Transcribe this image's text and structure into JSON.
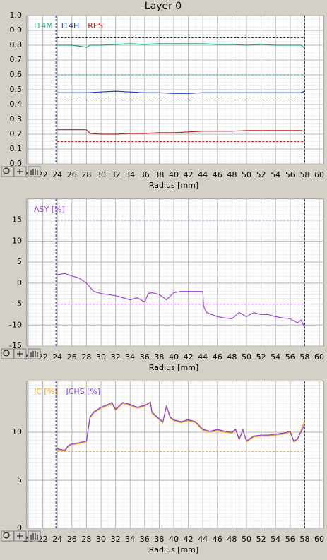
{
  "header": {
    "title": "Layer 0"
  },
  "chart_data": [
    {
      "type": "line",
      "x_label": "Radius [mm]",
      "xlim": [
        20,
        60
      ],
      "xticks": [
        20,
        22,
        24,
        26,
        28,
        30,
        32,
        34,
        36,
        38,
        40,
        42,
        44,
        46,
        48,
        50,
        52,
        54,
        56,
        58,
        60
      ],
      "ylim": [
        0,
        1
      ],
      "yticks": [
        {
          "value": 0,
          "label": "0.0"
        },
        0.1,
        0.2,
        0.3,
        0.4,
        0.5,
        0.6,
        0.7,
        0.8,
        0.9,
        {
          "value": 1,
          "label": "1.0"
        }
      ],
      "grid": true,
      "vlines": [
        {
          "value": 23.8,
          "color": "#2020c0"
        },
        {
          "value": 58,
          "color": "#2020c0"
        }
      ],
      "hlines": [
        {
          "value": 0.85,
          "color": "#2020c0"
        },
        {
          "value": 0.6,
          "color": "#20a080"
        },
        {
          "value": 0.45,
          "color": "#2020c0"
        },
        {
          "value": 0.15,
          "color": "#c02020"
        }
      ],
      "series": [
        {
          "name": "I14M",
          "color": "#20a080",
          "x": [
            24,
            26,
            27.5,
            28,
            28.5,
            30,
            32,
            34,
            36,
            38,
            40,
            42,
            44,
            46,
            48,
            50,
            52,
            54,
            56,
            57.5,
            58
          ],
          "values": [
            0.8,
            0.8,
            0.79,
            0.785,
            0.8,
            0.8,
            0.805,
            0.81,
            0.805,
            0.81,
            0.81,
            0.81,
            0.81,
            0.805,
            0.805,
            0.8,
            0.805,
            0.8,
            0.8,
            0.8,
            0.78
          ]
        },
        {
          "name": "I14H",
          "color": "#2040c0",
          "x": [
            24,
            26,
            28,
            30,
            32,
            34,
            36,
            38,
            40,
            42,
            44,
            46,
            48,
            50,
            52,
            54,
            56,
            57.5,
            58
          ],
          "values": [
            0.48,
            0.48,
            0.48,
            0.485,
            0.49,
            0.485,
            0.48,
            0.48,
            0.475,
            0.475,
            0.48,
            0.48,
            0.48,
            0.48,
            0.48,
            0.48,
            0.48,
            0.48,
            0.49
          ]
        },
        {
          "name": "RES",
          "color": "#c02020",
          "x": [
            24,
            26,
            28,
            28.5,
            30,
            32,
            34,
            36,
            38,
            40,
            42,
            44,
            46,
            48,
            50,
            52,
            54,
            56,
            57.5,
            58
          ],
          "values": [
            0.23,
            0.23,
            0.23,
            0.205,
            0.2,
            0.2,
            0.205,
            0.205,
            0.21,
            0.21,
            0.215,
            0.22,
            0.22,
            0.22,
            0.225,
            0.225,
            0.225,
            0.225,
            0.225,
            0.22
          ]
        }
      ]
    },
    {
      "type": "line",
      "x_label": "Radius [mm]",
      "xlim": [
        20,
        60
      ],
      "xticks": [
        20,
        22,
        24,
        26,
        28,
        30,
        32,
        34,
        36,
        38,
        40,
        42,
        44,
        46,
        48,
        50,
        52,
        54,
        56,
        58,
        60
      ],
      "ylim": [
        -15,
        20
      ],
      "yticks": [
        -15,
        -10,
        -5,
        0,
        5,
        10,
        15
      ],
      "grid": true,
      "vlines": [
        {
          "value": 23.8,
          "color": "#2020c0"
        },
        {
          "value": 58,
          "color": "#2020c0"
        }
      ],
      "hlines": [
        {
          "value": 15,
          "color": "#a040e0"
        },
        {
          "value": -5,
          "color": "#a040e0"
        }
      ],
      "series": [
        {
          "name": "ASY [%]",
          "color": "#a040e0",
          "x": [
            24,
            25,
            26,
            27,
            28,
            28.5,
            29,
            30,
            32,
            33,
            34,
            35,
            36,
            36.5,
            37,
            38,
            39,
            40,
            41,
            42,
            43,
            44,
            44.1,
            44.5,
            46,
            47,
            48,
            49,
            50,
            51,
            52,
            53,
            54,
            55,
            56,
            57,
            57.5,
            58
          ],
          "values": [
            2,
            2.3,
            1.7,
            1.2,
            0,
            -1,
            -2,
            -2.5,
            -3,
            -3.5,
            -4,
            -3.5,
            -4.5,
            -2.5,
            -2.3,
            -2.7,
            -4,
            -2.3,
            -2,
            -2,
            -2,
            -2,
            -5.5,
            -7,
            -8,
            -8.3,
            -8.5,
            -7,
            -8,
            -7,
            -7.5,
            -7.5,
            -8,
            -8.3,
            -8.5,
            -9.5,
            -8.8,
            -10.5
          ]
        }
      ]
    },
    {
      "type": "line",
      "x_label": "Radius [mm]",
      "xlim": [
        20,
        60
      ],
      "xticks": [
        20,
        22,
        24,
        26,
        28,
        30,
        32,
        34,
        36,
        38,
        40,
        42,
        44,
        46,
        48,
        50,
        52,
        54,
        56,
        58,
        60
      ],
      "ylim": [
        0,
        15.3
      ],
      "yticks": [
        0,
        5,
        10
      ],
      "grid": true,
      "vlines": [
        {
          "value": 23.8,
          "color": "#2020c0"
        },
        {
          "value": 58,
          "color": "#2020c0"
        }
      ],
      "hlines": [
        {
          "value": 8,
          "color": "#ff9900"
        }
      ],
      "series": [
        {
          "name": "JC [%]",
          "color": "#ff9900",
          "x": [
            24,
            25,
            25.5,
            26,
            27,
            28,
            28.5,
            29,
            30,
            31,
            31.5,
            32,
            33,
            34,
            35,
            36,
            36.8,
            37,
            38,
            38.5,
            39,
            39.5,
            40,
            41,
            42,
            43,
            44,
            45,
            46,
            47,
            48,
            48.5,
            49,
            49.5,
            50,
            51,
            52,
            53,
            54,
            55,
            56,
            56.5,
            57,
            58
          ],
          "values": [
            8.2,
            8,
            8.5,
            8.7,
            8.8,
            9,
            11.5,
            12,
            12.5,
            12.8,
            13,
            12.3,
            13,
            12.8,
            12.5,
            12.7,
            13.2,
            12,
            11.3,
            11,
            12.8,
            11.5,
            11.2,
            11,
            11.2,
            11,
            10.2,
            10,
            10.2,
            10,
            9.9,
            10.2,
            9.2,
            10.3,
            9,
            9.5,
            9.6,
            9.6,
            9.7,
            9.8,
            10,
            9,
            9.2,
            11.2
          ]
        },
        {
          "name": "JCHS [%]",
          "color": "#8040e0",
          "x": [
            24,
            25,
            25.5,
            26,
            27,
            28,
            28.5,
            29,
            30,
            31,
            31.5,
            32,
            33,
            34,
            35,
            36,
            36.8,
            37,
            38,
            38.5,
            39,
            39.5,
            40,
            41,
            42,
            43,
            44,
            45,
            46,
            47,
            48,
            48.5,
            49,
            49.5,
            50,
            51,
            52,
            53,
            54,
            55,
            56,
            56.5,
            57,
            58
          ],
          "values": [
            8.3,
            8.1,
            8.6,
            8.8,
            8.9,
            9.1,
            11.6,
            12.1,
            12.6,
            12.9,
            13.1,
            12.4,
            13.1,
            12.9,
            12.6,
            12.8,
            13.1,
            12.1,
            11.4,
            11.1,
            12.7,
            11.6,
            11.3,
            11.1,
            11.3,
            11.1,
            10.3,
            10.1,
            10.3,
            10.1,
            10,
            10.3,
            9.3,
            10.2,
            9.1,
            9.6,
            9.7,
            9.7,
            9.8,
            9.9,
            10.1,
            9.1,
            9.3,
            10.8
          ]
        }
      ]
    }
  ]
}
